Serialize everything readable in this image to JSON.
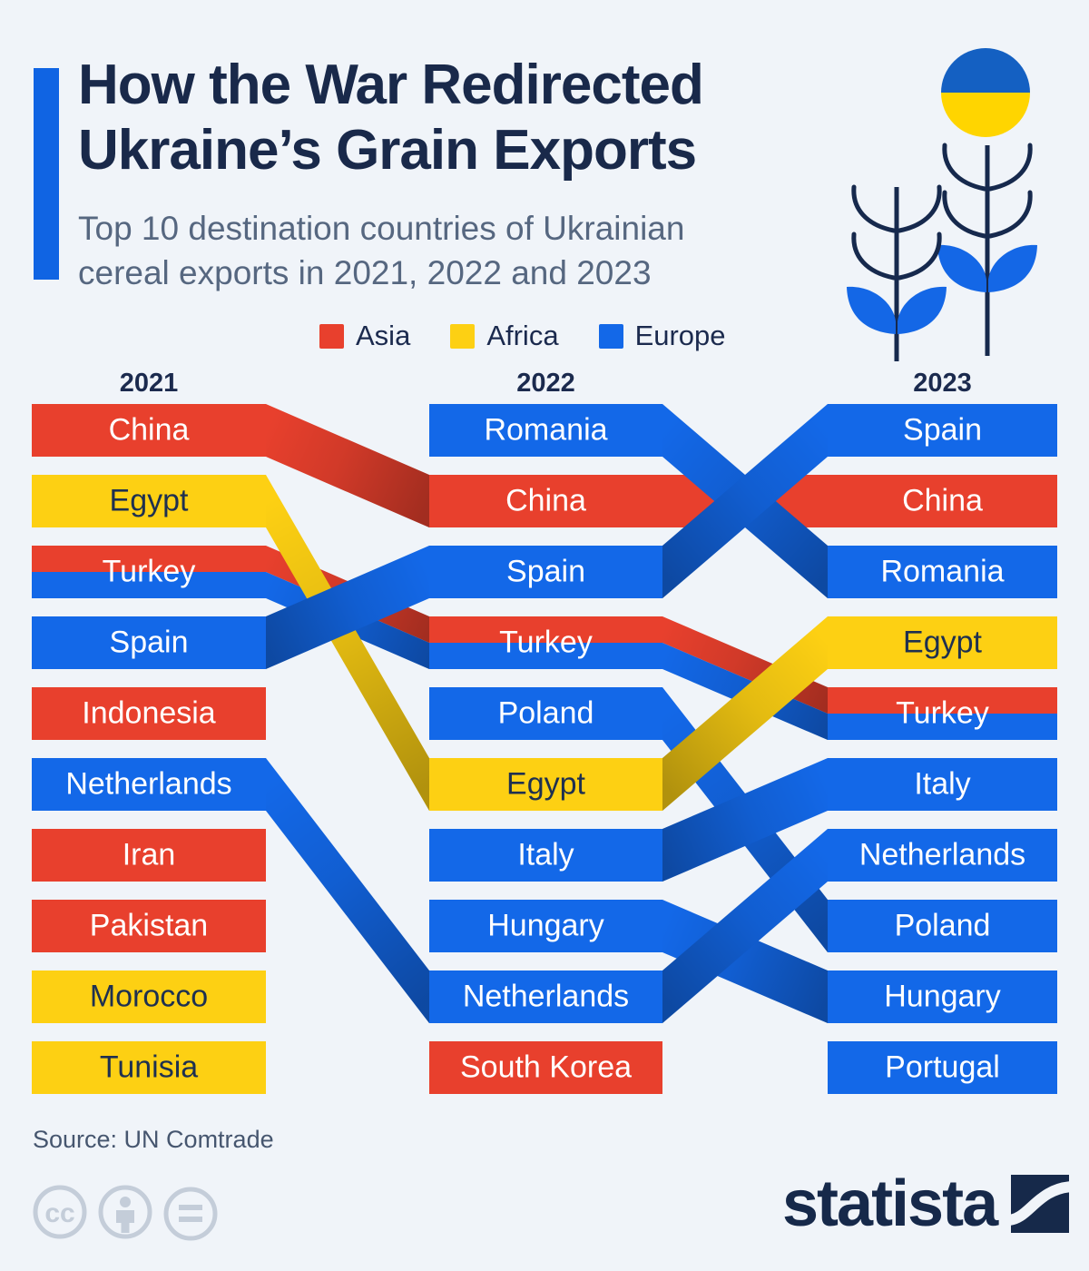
{
  "header": {
    "title_line1": "How the War Redirected",
    "title_line2": "Ukraine’s Grain Exports",
    "subtitle_line1": "Top 10 destination countries of Ukrainian",
    "subtitle_line2": "cereal exports in 2021, 2022 and 2023"
  },
  "chart_data": {
    "type": "bump",
    "years": [
      "2021",
      "2022",
      "2023"
    ],
    "legend": [
      {
        "label": "Asia",
        "continent": "asia"
      },
      {
        "label": "Africa",
        "continent": "africa"
      },
      {
        "label": "Europe",
        "continent": "europe"
      }
    ],
    "continent_colors": {
      "asia": "#e8402d",
      "africa": "#fdd013",
      "europe": "#1368e8"
    },
    "countries": [
      {
        "name": "China",
        "continent": "asia",
        "ranks": {
          "2021": 1,
          "2022": 2,
          "2023": 2
        }
      },
      {
        "name": "Egypt",
        "continent": "africa",
        "ranks": {
          "2021": 2,
          "2022": 6,
          "2023": 4
        }
      },
      {
        "name": "Turkey",
        "continent": "asia-europe",
        "ranks": {
          "2021": 3,
          "2022": 4,
          "2023": 5
        }
      },
      {
        "name": "Spain",
        "continent": "europe",
        "ranks": {
          "2021": 4,
          "2022": 3,
          "2023": 1
        }
      },
      {
        "name": "Indonesia",
        "continent": "asia",
        "ranks": {
          "2021": 5
        }
      },
      {
        "name": "Netherlands",
        "continent": "europe",
        "ranks": {
          "2021": 6,
          "2022": 9,
          "2023": 7
        }
      },
      {
        "name": "Iran",
        "continent": "asia",
        "ranks": {
          "2021": 7
        }
      },
      {
        "name": "Pakistan",
        "continent": "asia",
        "ranks": {
          "2021": 8
        }
      },
      {
        "name": "Morocco",
        "continent": "africa",
        "ranks": {
          "2021": 9
        }
      },
      {
        "name": "Tunisia",
        "continent": "africa",
        "ranks": {
          "2021": 10
        }
      },
      {
        "name": "Romania",
        "continent": "europe",
        "ranks": {
          "2022": 1,
          "2023": 3
        }
      },
      {
        "name": "Poland",
        "continent": "europe",
        "ranks": {
          "2022": 5,
          "2023": 8
        }
      },
      {
        "name": "Italy",
        "continent": "europe",
        "ranks": {
          "2022": 7,
          "2023": 6
        }
      },
      {
        "name": "Hungary",
        "continent": "europe",
        "ranks": {
          "2022": 8,
          "2023": 9
        }
      },
      {
        "name": "South Korea",
        "continent": "asia",
        "ranks": {
          "2022": 10
        }
      },
      {
        "name": "Portugal",
        "continent": "europe",
        "ranks": {
          "2023": 10
        }
      }
    ]
  },
  "colors": {
    "background": "#f0f4f9",
    "accent_blue": "#1064e3",
    "title_navy": "#19294a",
    "subtitle_gray": "#566780",
    "label_on_yellow": "#1e3050",
    "flag_blue": "#1460c2",
    "flag_yellow": "#ffd500",
    "wheat_outline": "#16294d",
    "wheat_fill": "#1467e6",
    "footer_gray": "#c4cdd9"
  },
  "footer": {
    "source": "Source: UN Comtrade",
    "brand": "statista"
  }
}
